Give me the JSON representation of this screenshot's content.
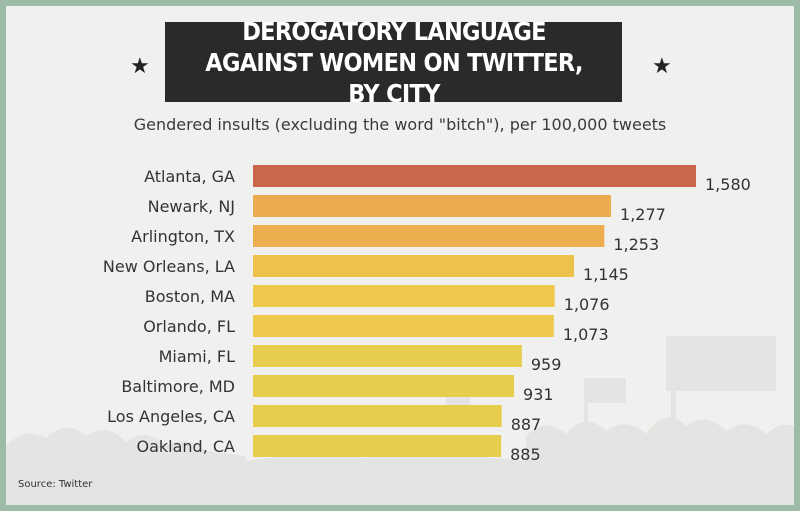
{
  "title": "DEROGATORY LANGUAGE AGAINST WOMEN ON TWITTER, BY CITY",
  "subtitle": "Gendered insults (excluding the word \"bitch\"), per 100,000 tweets",
  "source": "Source: Twitter",
  "colors": {
    "background": "#f0f0ee",
    "border": "#9dbba6",
    "title_box": "#2a2a2a",
    "bar_colors": [
      "#c9674c",
      "#edab50",
      "#edae4d",
      "#eec04c",
      "#eec94b",
      "#eec94b",
      "#e8cd4c",
      "#e8cd4c",
      "#e6cd4c",
      "#e6cd4c"
    ]
  },
  "icons": [
    "star-icon",
    "star-icon"
  ],
  "chart_data": {
    "type": "bar",
    "orientation": "horizontal",
    "categories": [
      "Atlanta, GA",
      "Newark, NJ",
      "Arlington, TX",
      "New Orleans, LA",
      "Boston, MA",
      "Orlando, FL",
      "Miami, FL",
      "Baltimore, MD",
      "Los Angeles, CA",
      "Oakland, CA"
    ],
    "values": [
      1580,
      1277,
      1253,
      1145,
      1076,
      1073,
      959,
      931,
      887,
      885
    ],
    "value_labels": [
      "1,580",
      "1,277",
      "1,253",
      "1,145",
      "1,076",
      "1,073",
      "959",
      "931",
      "887",
      "885"
    ],
    "title": "DEROGATORY LANGUAGE AGAINST WOMEN ON TWITTER, BY CITY",
    "subtitle": "Gendered insults (excluding the word \"bitch\"), per 100,000 tweets",
    "xlim": [
      0,
      1580
    ],
    "grid": false,
    "legend": "none"
  }
}
